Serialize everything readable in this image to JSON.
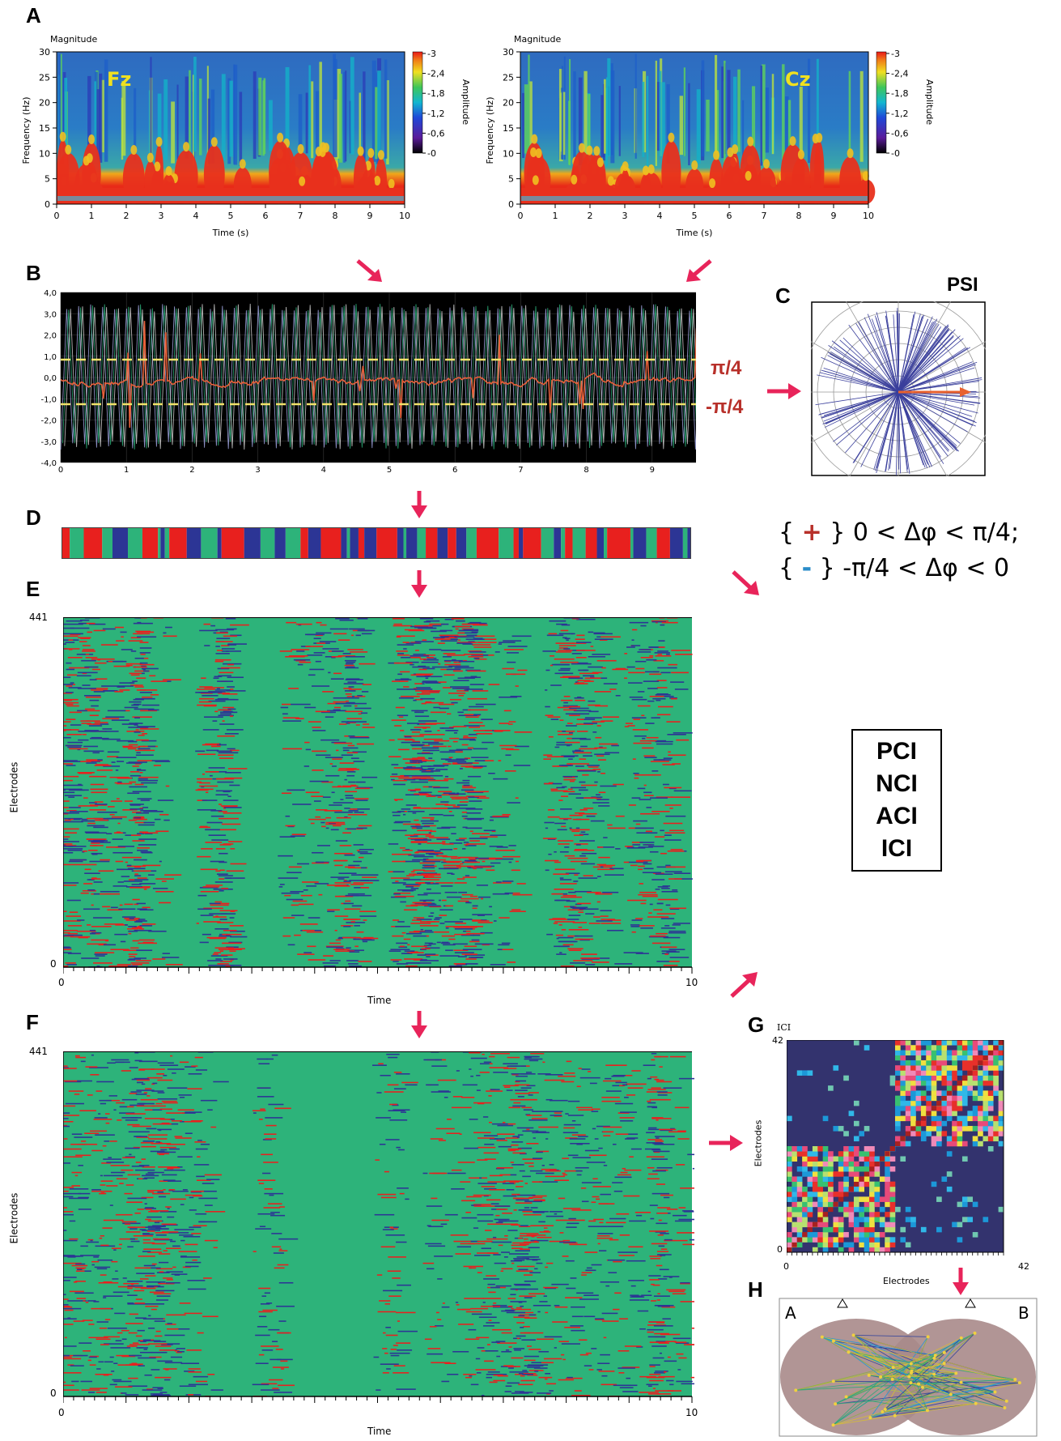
{
  "panels": {
    "a": "A",
    "b": "B",
    "c": "C",
    "d": "D",
    "e": "E",
    "f": "F",
    "g": "G",
    "h": "H"
  },
  "spectrogram_left": {
    "corner_label": "Magnitude",
    "electrode": "Fz",
    "ylabel": "Frequency (Hz)",
    "xlabel": "Time (s)",
    "yticks": [
      "0",
      "5",
      "10",
      "15",
      "20",
      "25",
      "30"
    ],
    "xticks": [
      "0",
      "1",
      "2",
      "3",
      "4",
      "5",
      "6",
      "7",
      "8",
      "9",
      "10"
    ],
    "colorbar_label": "Amplitude",
    "colorbar_ticks": [
      "3",
      "2,4",
      "1,8",
      "1,2",
      "0,6",
      "0"
    ]
  },
  "spectrogram_right": {
    "corner_label": "Magnitude",
    "electrode": "Cz",
    "ylabel": "Frequency (Hz)",
    "xlabel": "Time (s)",
    "yticks": [
      "0",
      "5",
      "10",
      "15",
      "20",
      "25",
      "30"
    ],
    "xticks": [
      "0",
      "1",
      "2",
      "3",
      "4",
      "5",
      "6",
      "7",
      "8",
      "9",
      "10"
    ],
    "colorbar_label": "Amplitude",
    "colorbar_ticks": [
      "3",
      "2,4",
      "1,8",
      "1,2",
      "0,6",
      "0"
    ]
  },
  "phase_plot": {
    "yticks": [
      "4,0",
      "3,0",
      "2,0",
      "1,0",
      "0,0",
      "-1,0",
      "-2,0",
      "-3,0",
      "-4,0"
    ],
    "xticks": [
      "0",
      "1",
      "2",
      "3",
      "4",
      "5",
      "6",
      "7",
      "8",
      "9",
      "10"
    ],
    "upper_threshold": "π/4",
    "lower_threshold": "-π/4"
  },
  "polar": {
    "title": "PSI"
  },
  "legend": {
    "plus_line_open": "{ ",
    "plus_sign": "+",
    "plus_line_rest": " } 0 < Δφ < π/4;",
    "minus_line_open": "{ ",
    "minus_sign": "-",
    "minus_line_rest": " } -π/4 < Δφ < 0"
  },
  "indices": [
    "PCI",
    "NCI",
    "ACI",
    "ICI"
  ],
  "raster_e": {
    "ytop": "441",
    "ybottom": "0",
    "ylabel": "Electrodes",
    "xleft": "0",
    "xright": "10",
    "xlabel": "Time"
  },
  "raster_f": {
    "ytop": "441",
    "ybottom": "0",
    "ylabel": "Electrodes",
    "xleft": "0",
    "xright": "10",
    "xlabel": "Time"
  },
  "matrix_g": {
    "title": "ICI",
    "ytop": "42",
    "ybottom": "0",
    "ylabel": "Electrodes",
    "xleft": "0",
    "xright": "42",
    "xlabel": "Electrodes"
  },
  "network_h": {
    "left_label": "A",
    "right_label": "B"
  },
  "colors": {
    "red": "#e8201e",
    "blue": "#2c3595",
    "green": "#2db37a",
    "arrow": "#e8245a",
    "matrix_bg": "#33336e",
    "hemisphere": "#a88a8a"
  },
  "icons": [
    "arrow-down-icon",
    "arrow-diagonal-icon",
    "arrow-right-icon"
  ]
}
